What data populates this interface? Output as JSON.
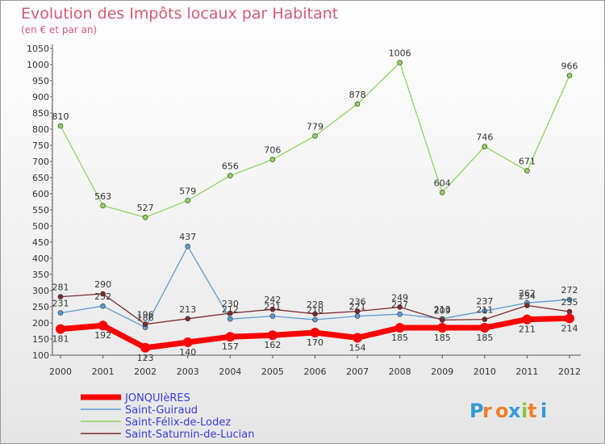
{
  "chart_data": {
    "type": "line",
    "title": "Evolution des Impôts locaux par Habitant",
    "subtitle": "(en € et par an)",
    "x": [
      "2000",
      "2001",
      "2002",
      "2003",
      "2004",
      "2005",
      "2006",
      "2007",
      "2008",
      "2009",
      "2010",
      "2011",
      "2012"
    ],
    "ylim": [
      100,
      1050
    ],
    "yticks": [
      100,
      150,
      200,
      250,
      300,
      350,
      400,
      450,
      500,
      550,
      600,
      650,
      700,
      750,
      800,
      850,
      900,
      950,
      1000,
      1050
    ],
    "grid": false,
    "legend_position": "bottom-left",
    "series": [
      {
        "name": "JONQUIèRES",
        "color": "#ff0000",
        "values": [
          181,
          192,
          123,
          140,
          157,
          162,
          170,
          154,
          185,
          185,
          185,
          211,
          214
        ]
      },
      {
        "name": "Saint-Guiraud",
        "color": "#5b9bd5",
        "values": [
          231,
          252,
          186,
          437,
          212,
          221,
          210,
          221,
          227,
          213,
          237,
          262,
          272
        ]
      },
      {
        "name": "Saint-Félix-de-Lodez",
        "color": "#8fd360",
        "values": [
          810,
          563,
          527,
          579,
          656,
          706,
          779,
          878,
          1006,
          604,
          746,
          671,
          966
        ]
      },
      {
        "name": "Saint-Saturnin-de-Lucian",
        "color": "#7b2a2a",
        "values": [
          281,
          290,
          196,
          213,
          230,
          242,
          228,
          236,
          249,
          209,
          211,
          254,
          235
        ]
      }
    ]
  },
  "logo": {
    "text": "Proxiti",
    "letter_colors": [
      "#2f9bd6",
      "#f07d28",
      "#f07d28",
      "#2f9bd6",
      "#8bc53f",
      "#f07d28",
      "#2f9bd6"
    ]
  }
}
